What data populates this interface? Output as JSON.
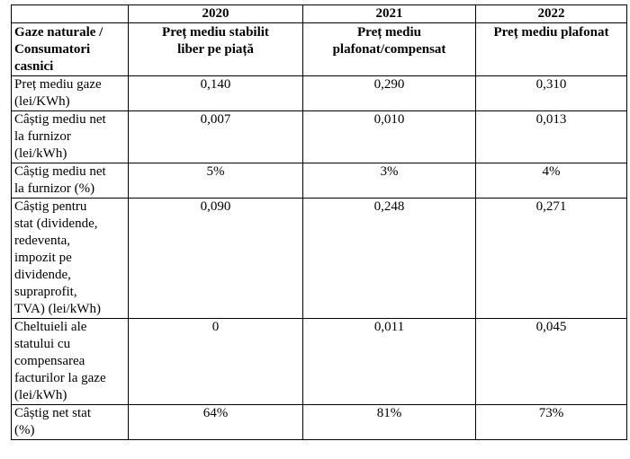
{
  "table": {
    "years": [
      "2020",
      "2021",
      "2022"
    ],
    "header": {
      "corner": "Gaze naturale  /\nConsumatori\ncasnici",
      "columns": [
        "Preț mediu stabilit\nliber pe piață",
        "Preț mediu\nplafonat/compensat",
        "Preț mediu plafonat"
      ]
    },
    "rows": [
      {
        "label": "Preț mediu gaze\n(lei/KWh)",
        "values": [
          "0,140",
          "0,290",
          "0,310"
        ]
      },
      {
        "label": "Câștig mediu net\nla furnizor\n(lei/kWh)",
        "values": [
          "0,007",
          "0,010",
          "0,013"
        ]
      },
      {
        "label": "Câștig mediu net\nla furnizor (%)",
        "values": [
          "5%",
          "3%",
          "4%"
        ]
      },
      {
        "label": "Câștig pentru\nstat (dividende,\nredeventa,\nimpozit pe\ndividende,\nsupraprofit,\nTVA) (lei/kWh)",
        "values": [
          "0,090",
          "0,248",
          "0,271"
        ]
      },
      {
        "label": "Cheltuieli ale\nstatului cu\ncompensarea\nfacturilor la gaze\n(lei/kWh)",
        "values": [
          "0",
          "0,011",
          "0,045"
        ]
      },
      {
        "label": "Câștig  net stat\n(%)",
        "values": [
          "64%",
          "81%",
          "73%"
        ]
      }
    ]
  }
}
